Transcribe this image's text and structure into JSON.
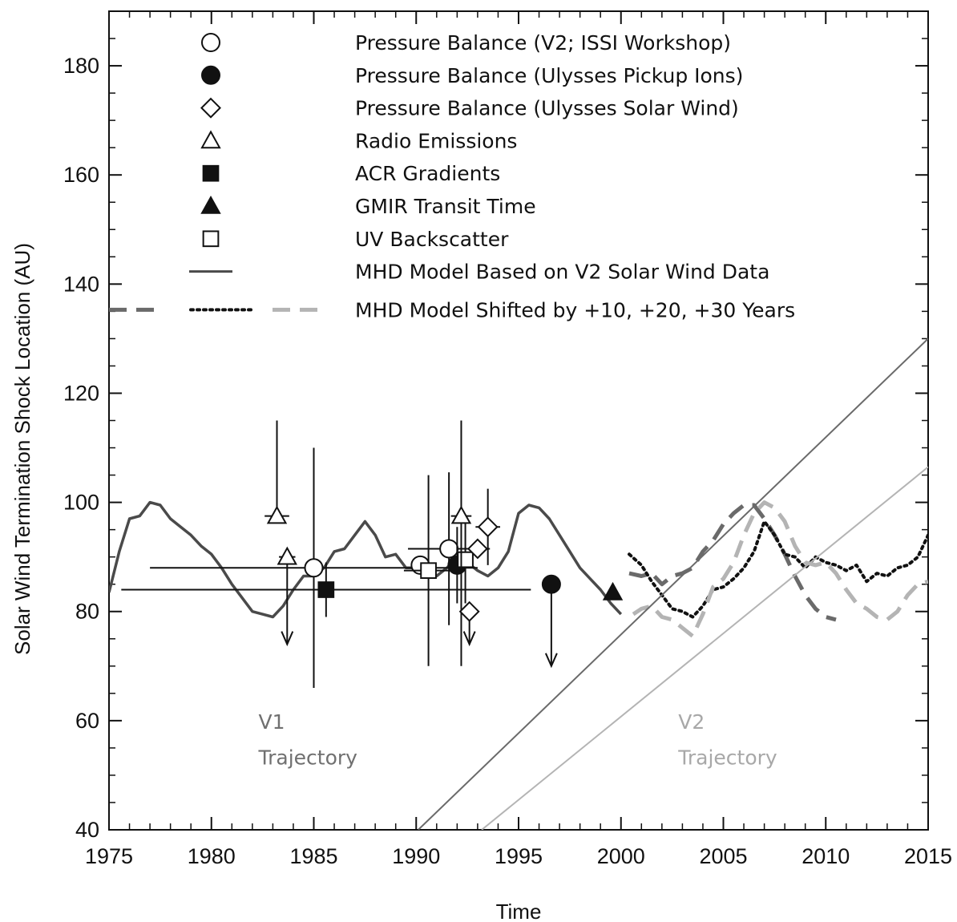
{
  "chart_data": {
    "type": "line",
    "title": "",
    "xlabel": "Time",
    "ylabel": "Solar Wind Termination Shock Location (AU)",
    "xlim": [
      1975,
      2015
    ],
    "ylim": [
      40,
      190
    ],
    "x_ticks": [
      1975,
      1980,
      1985,
      1990,
      1995,
      2000,
      2005,
      2010,
      2015
    ],
    "y_ticks": [
      40,
      60,
      80,
      100,
      120,
      140,
      160,
      180
    ],
    "grid": false,
    "legend_position": "top",
    "legend": [
      {
        "marker": "open-circle",
        "label": "Pressure Balance (V2; ISSI Workshop)"
      },
      {
        "marker": "filled-circle",
        "label": "Pressure Balance (Ulysses Pickup Ions)"
      },
      {
        "marker": "open-diamond",
        "label": "Pressure Balance (Ulysses Solar Wind)"
      },
      {
        "marker": "open-triangle",
        "label": "Radio Emissions"
      },
      {
        "marker": "filled-square",
        "label": "ACR Gradients"
      },
      {
        "marker": "filled-triangle",
        "label": "GMIR Transit Time"
      },
      {
        "marker": "open-square",
        "label": "UV Backscatter"
      },
      {
        "marker": "solid-line",
        "label": "MHD Model Based on V2 Solar Wind Data"
      },
      {
        "marker": "shifted-lines",
        "label": "MHD Model Shifted by +10, +20, +30 Years"
      }
    ],
    "annotations": [
      {
        "text": "V1",
        "x": 1982.3,
        "y": 58.5,
        "color": "#707070"
      },
      {
        "text": "Trajectory",
        "x": 1982.3,
        "y": 52,
        "color": "#707070"
      },
      {
        "text": "V2",
        "x": 2002.8,
        "y": 58.5,
        "color": "#a8a8a8"
      },
      {
        "text": "Trajectory",
        "x": 2002.8,
        "y": 52,
        "color": "#a8a8a8"
      }
    ],
    "colors": {
      "mhd": "#4a4a4a",
      "shift10": "#6a6a6a",
      "shift20": "#111111",
      "shift30": "#b4b4b4",
      "v1_trajectory": "#6a6a6a",
      "v2_trajectory": "#b4b4b4"
    },
    "series": [
      {
        "name": "MHD Model Based on V2 Solar Wind Data",
        "style": "solid",
        "x": [
          1975.0,
          1975.5,
          1976.0,
          1976.5,
          1977.0,
          1977.5,
          1978.0,
          1978.5,
          1979.0,
          1979.5,
          1980.0,
          1980.5,
          1981.0,
          1981.5,
          1982.0,
          1982.5,
          1983.0,
          1983.5,
          1984.0,
          1984.5,
          1985.0,
          1985.5,
          1986.0,
          1986.5,
          1987.0,
          1987.5,
          1988.0,
          1988.5,
          1989.0,
          1989.5,
          1990.0,
          1990.5,
          1991.0,
          1991.5,
          1992.0,
          1992.5,
          1993.0,
          1993.5,
          1994.0,
          1994.5,
          1995.0,
          1995.5,
          1996.0,
          1996.5,
          1997.0,
          1997.5,
          1998.0,
          1998.5,
          1999.0,
          1999.5,
          2000.0
        ],
        "y": [
          83.5,
          91,
          97,
          97.5,
          100,
          99.5,
          97,
          95.5,
          94,
          92,
          90.5,
          88,
          85,
          82.5,
          80,
          79.5,
          79,
          81,
          84,
          86.5,
          86.5,
          88,
          91,
          91.5,
          94,
          96.5,
          94,
          90,
          90.5,
          88,
          88,
          87.5,
          86.5,
          88,
          90,
          89,
          87.5,
          86.5,
          88,
          91,
          98,
          99.5,
          99,
          97,
          94,
          91,
          88,
          86,
          84,
          81.5,
          79.5
        ]
      },
      {
        "name": "MHD Model Shifted by +10 Years",
        "style": "dashed",
        "x": [
          2000.4,
          2001.0,
          2001.5,
          2002.0,
          2002.5,
          2003.0,
          2003.5,
          2004.0,
          2004.5,
          2005.0,
          2005.5,
          2006.0,
          2006.5,
          2007.0,
          2007.5,
          2008.0,
          2008.5,
          2009.0,
          2009.5,
          2010.0,
          2010.5
        ],
        "y": [
          87,
          86.5,
          87,
          85,
          86.5,
          87,
          88,
          91,
          93,
          96,
          98,
          99.5,
          99.5,
          97,
          94,
          90.5,
          86.5,
          83,
          80.5,
          79,
          78.5
        ]
      },
      {
        "name": "MHD Model Shifted by +20 Years",
        "style": "dotted",
        "x": [
          2000.4,
          2001.0,
          2001.5,
          2002.0,
          2002.5,
          2003.0,
          2003.5,
          2004.0,
          2004.5,
          2005.0,
          2005.5,
          2006.0,
          2006.5,
          2007.0,
          2007.5,
          2008.0,
          2008.5,
          2009.0,
          2009.5,
          2010.0,
          2010.5,
          2011.0,
          2011.5,
          2012.0,
          2012.5,
          2013.0,
          2013.5,
          2014.0,
          2014.5,
          2015.0
        ],
        "y": [
          90.5,
          88.5,
          85.5,
          83,
          80.5,
          80,
          79,
          81,
          84,
          84.5,
          86,
          88,
          91,
          96.5,
          94,
          90.5,
          90,
          88,
          90,
          89,
          88.5,
          87.5,
          88.5,
          85.5,
          87,
          86.5,
          88,
          88.5,
          90,
          94
        ]
      },
      {
        "name": "MHD Model Shifted by +30 Years",
        "style": "dashed",
        "x": [
          2000.6,
          2001.0,
          2001.5,
          2002.0,
          2002.5,
          2003.0,
          2003.5,
          2004.0,
          2004.5,
          2005.0,
          2005.5,
          2006.0,
          2006.5,
          2007.0,
          2007.5,
          2008.0,
          2008.5,
          2009.0,
          2009.5,
          2010.0,
          2010.5,
          2011.0,
          2011.5,
          2012.0,
          2012.5,
          2013.0,
          2013.5,
          2014.0,
          2014.5,
          2015.0
        ],
        "y": [
          79.5,
          80.5,
          81,
          79,
          78.5,
          77,
          75.5,
          79.5,
          84.5,
          86,
          89,
          94,
          98,
          100,
          99,
          96.5,
          92,
          89,
          88.5,
          89,
          87,
          84,
          81.5,
          80.5,
          79,
          78.5,
          80,
          83,
          85,
          85.5
        ]
      },
      {
        "name": "V1 Trajectory",
        "style": "solid",
        "x": [
          1990.1,
          2015.0
        ],
        "y": [
          40,
          130
        ]
      },
      {
        "name": "V2 Trajectory",
        "style": "solid",
        "x": [
          1993.2,
          2015.0
        ],
        "y": [
          40,
          106.5
        ]
      }
    ],
    "points": [
      {
        "marker": "open-triangle",
        "x": 1983.2,
        "y": 97.5,
        "xerr": 0.6,
        "yerr_low": 0,
        "yerr_high": 17.5
      },
      {
        "marker": "open-triangle",
        "x": 1983.7,
        "y": 90,
        "xerr": 0.4,
        "upper_limit": true,
        "arrow_to": 74
      },
      {
        "marker": "open-circle",
        "x": 1985.0,
        "y": 88,
        "xerr": 8,
        "yerr_low": 22,
        "yerr_high": 22
      },
      {
        "marker": "filled-square",
        "x": 1985.6,
        "y": 84,
        "xerr": 10,
        "yerr_low": 5,
        "yerr_high": 5
      },
      {
        "marker": "open-circle",
        "x": 1990.2,
        "y": 88.5,
        "xerr": 0.3
      },
      {
        "marker": "open-square",
        "x": 1990.6,
        "y": 87.5,
        "xerr": 1.2,
        "yerr_low": 17.5,
        "yerr_high": 17.5
      },
      {
        "marker": "open-circle",
        "x": 1991.6,
        "y": 91.5,
        "xerr": 2.0,
        "yerr_low": 14,
        "yerr_high": 14
      },
      {
        "marker": "filled-circle",
        "x": 1992.0,
        "y": 88.5,
        "xerr": 0.3,
        "yerr_low": 7,
        "yerr_high": 7
      },
      {
        "marker": "open-square",
        "x": 1992.4,
        "y": 89.5,
        "xerr": 0.3,
        "yerr_low": 8,
        "yerr_high": 8
      },
      {
        "marker": "open-triangle",
        "x": 1992.2,
        "y": 97.5,
        "xerr": 0.5,
        "yerr_low": 27.5,
        "yerr_high": 17.5
      },
      {
        "marker": "open-diamond",
        "x": 1992.6,
        "y": 80,
        "upper_limit": true,
        "arrow_to": 74
      },
      {
        "marker": "open-diamond",
        "x": 1993.0,
        "y": 91.5
      },
      {
        "marker": "open-diamond",
        "x": 1993.5,
        "y": 95.5,
        "xerr": 0.6,
        "yerr_low": 7,
        "yerr_high": 7
      },
      {
        "marker": "filled-circle",
        "x": 1996.6,
        "y": 85,
        "upper_limit": true,
        "arrow_to": 70
      },
      {
        "marker": "filled-triangle",
        "x": 1999.6,
        "y": 83.5
      }
    ]
  }
}
